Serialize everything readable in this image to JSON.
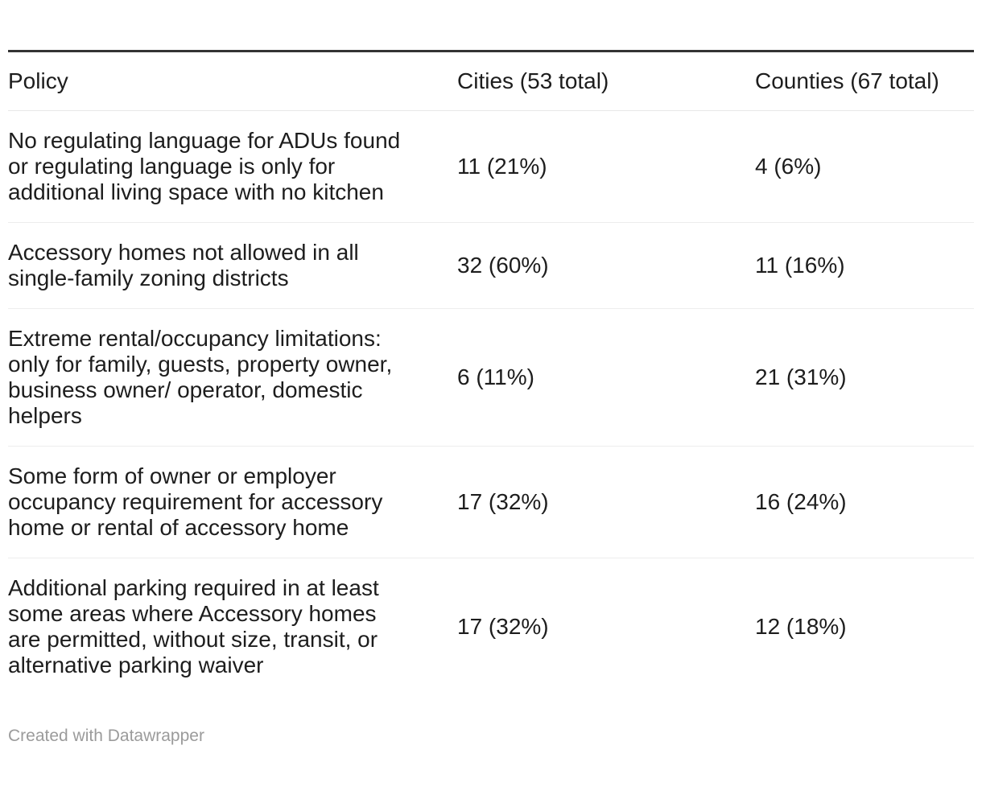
{
  "chart_data": {
    "type": "table",
    "columns": [
      "Policy",
      "Cities (53 total)",
      "Counties (67 total)"
    ],
    "rows": [
      [
        "No regulating language for ADUs found or regulating language is only for additional living space with no kitchen",
        "11 (21%)",
        "4 (6%)"
      ],
      [
        "Accessory homes not allowed in all single-family zoning districts",
        "32 (60%)",
        "11 (16%)"
      ],
      [
        "Extreme rental/occupancy limitations: only for family, guests, property owner, business owner/ operator, domestic helpers",
        "6 (11%)",
        "21 (31%)"
      ],
      [
        "Some form of owner or employer occupancy requirement for accessory home or rental of accessory home",
        "17 (32%)",
        "16 (24%)"
      ],
      [
        "Additional parking required in at least some areas where Accessory homes are permitted, without size, transit, or alternative parking waiver",
        "17 (32%)",
        "12 (18%)"
      ]
    ],
    "title": "",
    "legend_position": "none",
    "grid": "horizontal-dividers"
  },
  "footer": {
    "credit": "Created with Datawrapper"
  },
  "colors": {
    "text": "#1d1d1d",
    "top_border": "#333333",
    "divider": "#ededed",
    "header_divider": "#e8e8e8",
    "credit_text": "#9b9b9b",
    "background": "#ffffff"
  }
}
